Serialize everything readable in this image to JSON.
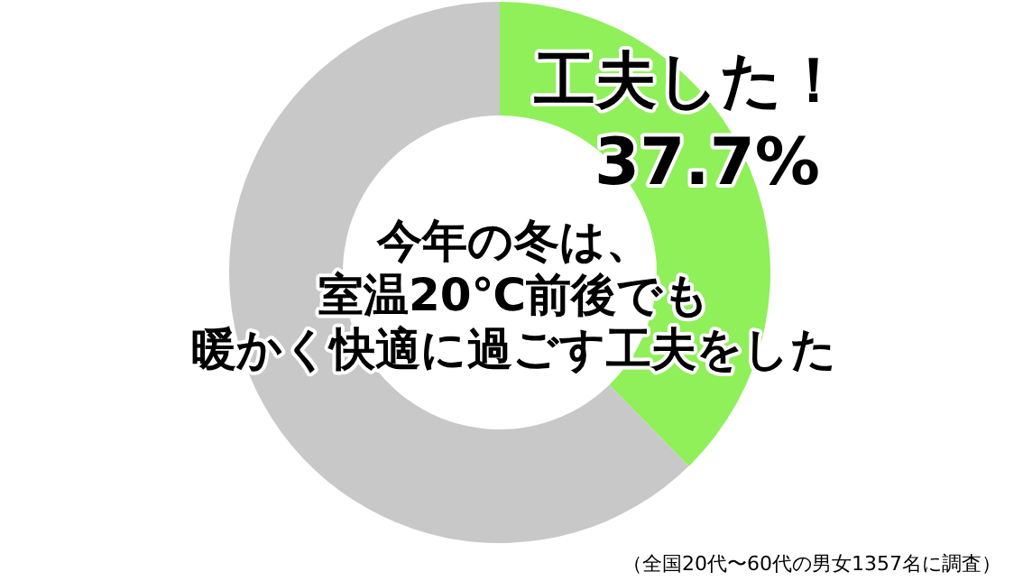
{
  "chart_data": {
    "type": "donut",
    "title": "今年の冬は、室温20℃前後でも暖かく快適に過ごす工夫をした",
    "categories": [
      "工夫した！",
      null
    ],
    "values": [
      37.7,
      62.3
    ],
    "colors": [
      "#8ff05a",
      "#c8c8c8"
    ],
    "value_labels": [
      "37.7%",
      null
    ],
    "annotations": [
      "（全国20代〜60代の男女1357名に調査）"
    ]
  }
}
